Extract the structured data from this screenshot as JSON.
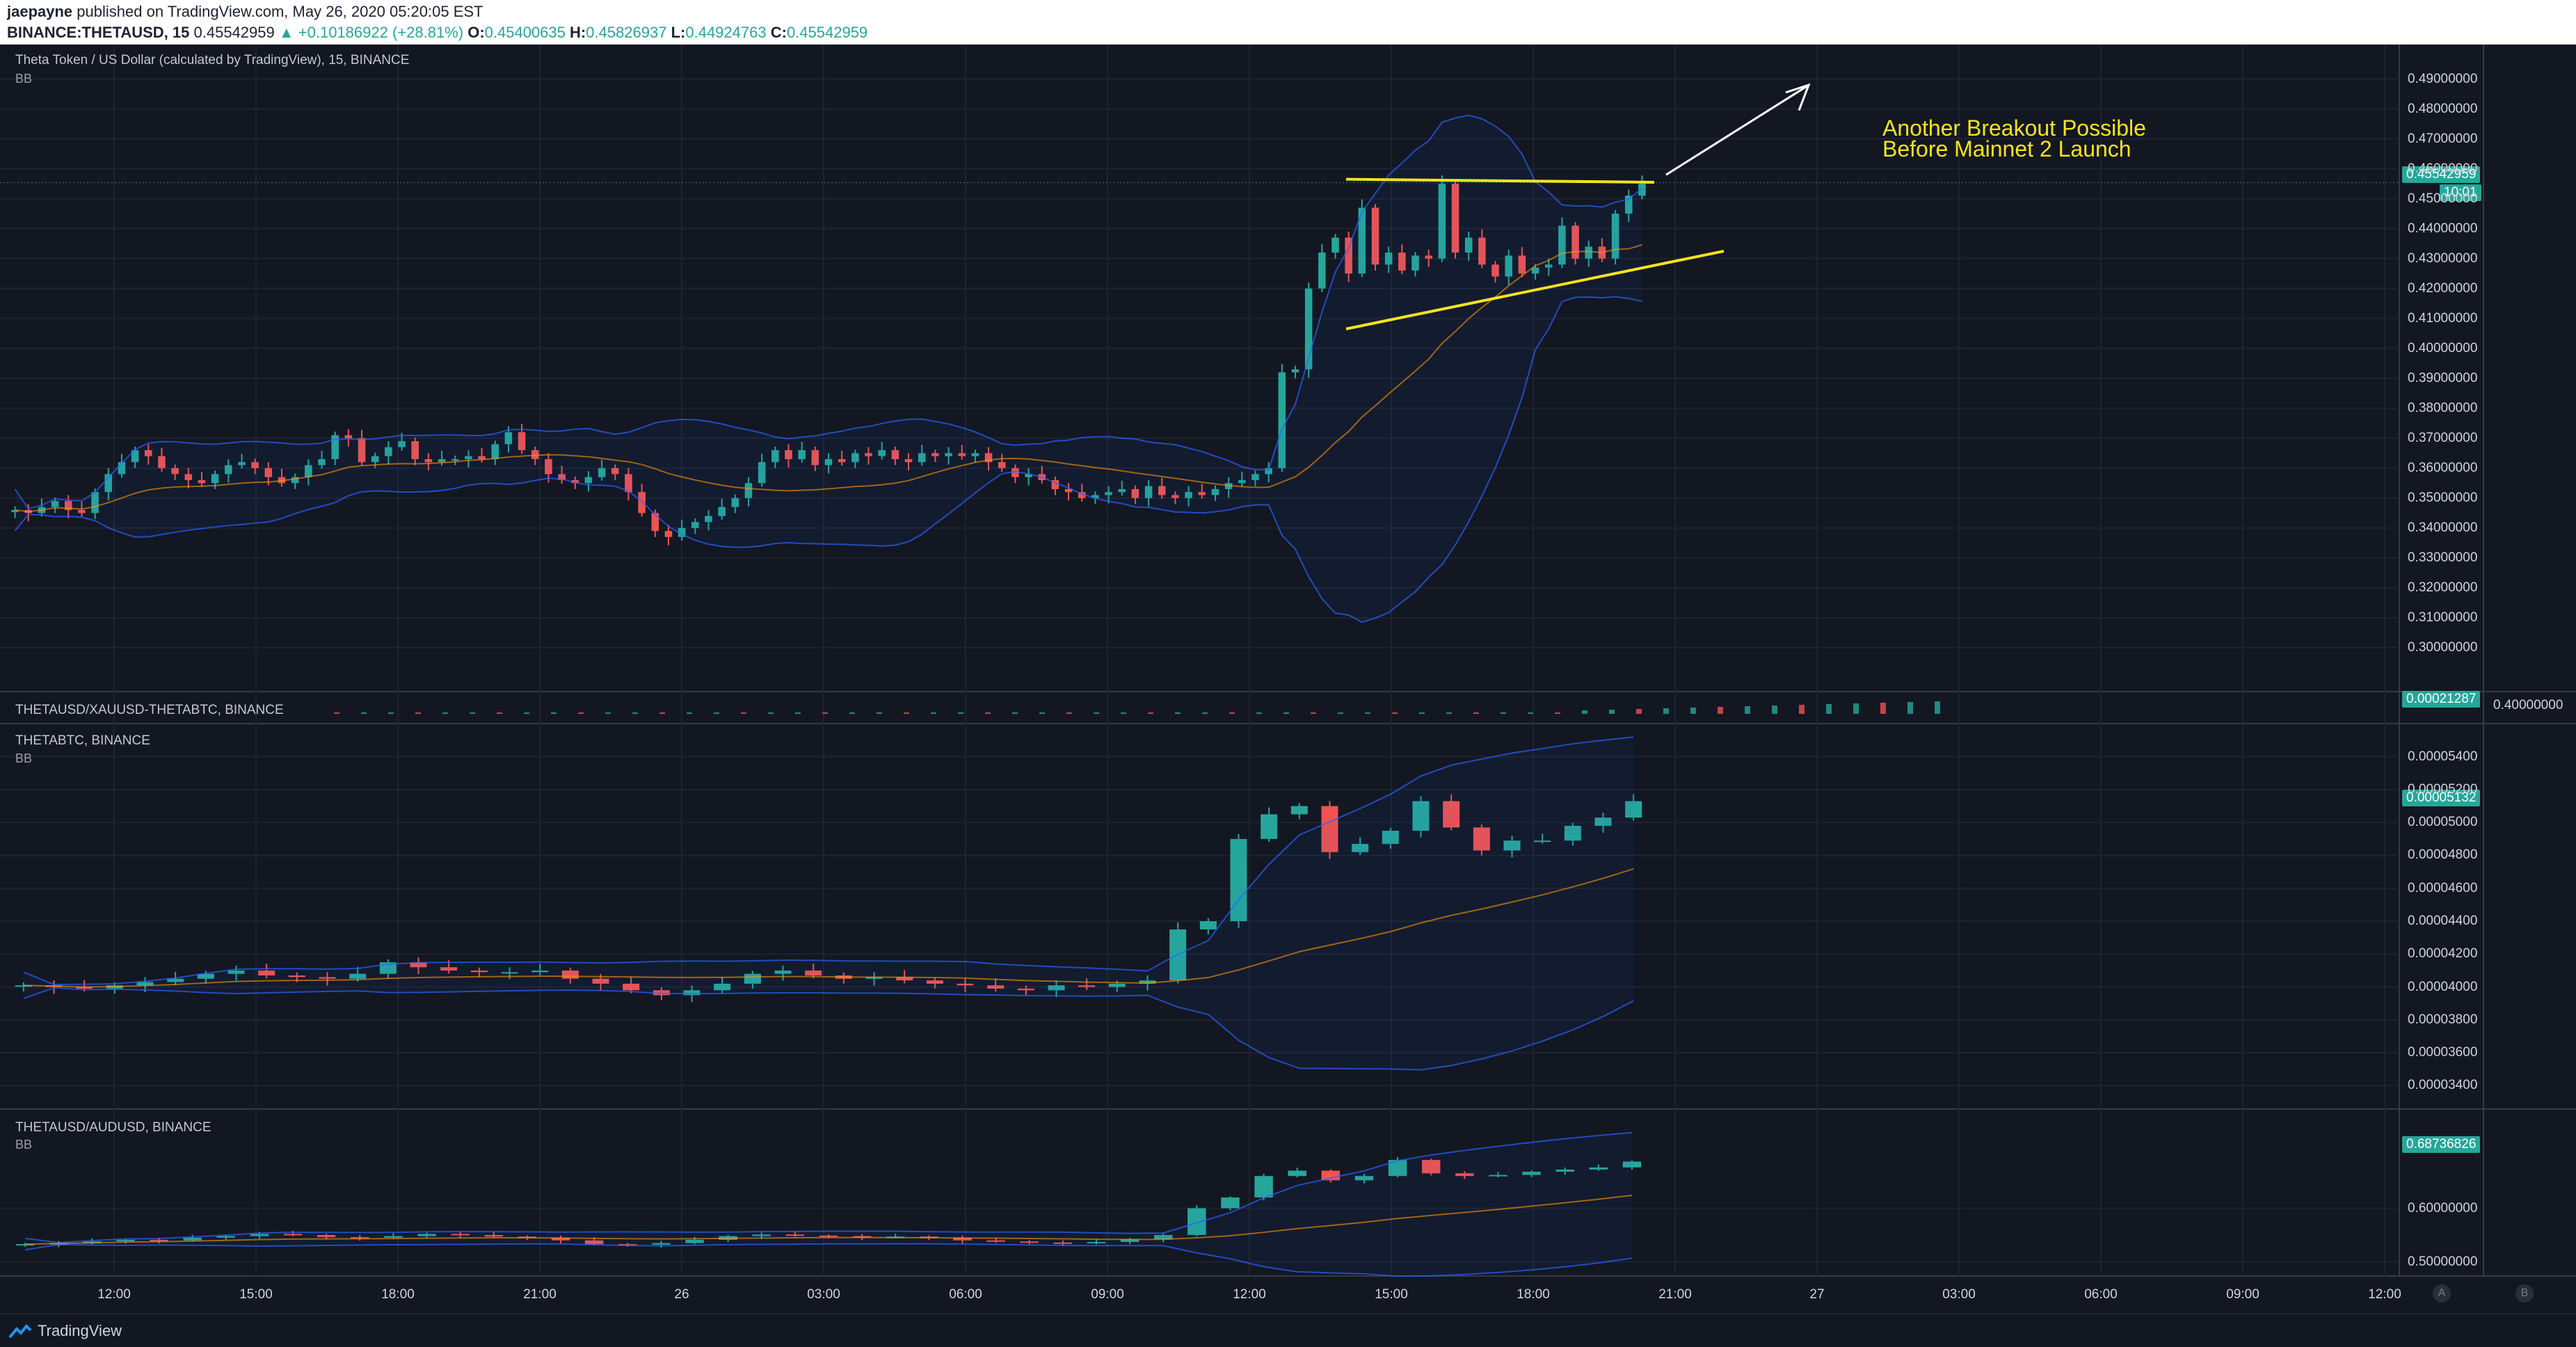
{
  "header": {
    "author": "jaepayne",
    "published": "published on TradingView.com, May 26, 2020 05:20:05 EST",
    "symbol": "BINANCE:THETAUSD, 15",
    "last": "0.45542959",
    "change": "▲ +0.10186922 (+28.81%)",
    "o_label": "O:",
    "o_value": "0.45400635",
    "h_label": "H:",
    "h_value": "0.45826937",
    "l_label": "L:",
    "l_value": "0.44924763",
    "c_label": "C:",
    "c_value": "0.45542959"
  },
  "panes": {
    "main": {
      "title": "Theta Token / US Dollar (calculated by TradingView), 15, BINANCE",
      "indicator": "BB",
      "ticks": [
        "0.49000000",
        "0.48000000",
        "0.47000000",
        "0.46000000",
        "0.45000000",
        "0.44000000",
        "0.43000000",
        "0.42000000",
        "0.41000000",
        "0.40000000",
        "0.39000000",
        "0.38000000",
        "0.37000000",
        "0.36000000",
        "0.35000000",
        "0.34000000",
        "0.33000000",
        "0.32000000",
        "0.31000000",
        "0.30000000"
      ],
      "last_price_badge": "0.45542959",
      "countdown_badge": "10:01",
      "annotation_line1": "Another Breakout Possible",
      "annotation_line2": "Before Mainnet 2 Launch"
    },
    "ratio": {
      "title": "THETAUSD/XAUUSD-THETABTC, BINANCE",
      "badge": "0.00021287",
      "side_value": "0.40000000"
    },
    "btc": {
      "title": "THETABTC, BINANCE",
      "indicator": "BB",
      "ticks": [
        "0.00005400",
        "0.00005200",
        "0.00005000",
        "0.00004800",
        "0.00004600",
        "0.00004400",
        "0.00004200",
        "0.00004000",
        "0.00003800",
        "0.00003600",
        "0.00003400"
      ],
      "badge": "0.00005132"
    },
    "aud": {
      "title": "THETAUSD/AUDUSD, BINANCE",
      "indicator": "BB",
      "ticks": [
        "0.60000000",
        "0.50000000"
      ],
      "badge": "0.68736826"
    }
  },
  "time_axis": [
    "12:00",
    "15:00",
    "18:00",
    "21:00",
    "26",
    "03:00",
    "06:00",
    "09:00",
    "12:00",
    "15:00",
    "18:00",
    "21:00",
    "27",
    "03:00",
    "06:00",
    "09:00",
    "12:00"
  ],
  "axis_buttons": [
    "A",
    "B"
  ],
  "footer": {
    "brand": "TradingView"
  },
  "colors": {
    "background": "#131722",
    "up": "#26a69a",
    "down": "#ef5350",
    "bb_band": "#2962ff",
    "bb_basis": "#ff9800",
    "annotation": "#f5e31d"
  },
  "chart_data": {
    "type": "candlestick",
    "main_price_axis": {
      "min": 0.29,
      "max": 0.495
    },
    "main_closes": [
      0.346,
      0.345,
      0.347,
      0.349,
      0.346,
      0.345,
      0.352,
      0.358,
      0.362,
      0.366,
      0.364,
      0.36,
      0.358,
      0.356,
      0.355,
      0.358,
      0.361,
      0.362,
      0.36,
      0.357,
      0.355,
      0.357,
      0.361,
      0.363,
      0.371,
      0.37,
      0.362,
      0.364,
      0.367,
      0.369,
      0.363,
      0.362,
      0.363,
      0.363,
      0.364,
      0.363,
      0.368,
      0.372,
      0.366,
      0.363,
      0.358,
      0.356,
      0.355,
      0.357,
      0.36,
      0.358,
      0.352,
      0.345,
      0.339,
      0.337,
      0.34,
      0.342,
      0.344,
      0.347,
      0.35,
      0.355,
      0.362,
      0.366,
      0.363,
      0.366,
      0.361,
      0.363,
      0.362,
      0.365,
      0.364,
      0.366,
      0.363,
      0.362,
      0.365,
      0.364,
      0.365,
      0.364,
      0.365,
      0.362,
      0.36,
      0.357,
      0.358,
      0.356,
      0.353,
      0.352,
      0.35,
      0.351,
      0.352,
      0.353,
      0.35,
      0.354,
      0.351,
      0.35,
      0.352,
      0.351,
      0.353,
      0.355,
      0.356,
      0.358,
      0.36,
      0.392,
      0.393,
      0.42,
      0.432,
      0.437,
      0.425,
      0.447,
      0.428,
      0.432,
      0.426,
      0.431,
      0.43,
      0.455,
      0.432,
      0.437,
      0.428,
      0.424,
      0.431,
      0.425,
      0.427,
      0.428,
      0.441,
      0.43,
      0.434,
      0.43,
      0.445,
      0.451,
      0.455
    ],
    "btc_closes": [
      4.01e-05,
      4e-05,
      3.99e-05,
      4.01e-05,
      4.03e-05,
      4.05e-05,
      4.08e-05,
      4.1e-05,
      4.07e-05,
      4.06e-05,
      4.05e-05,
      4.08e-05,
      4.15e-05,
      4.12e-05,
      4.1e-05,
      4.09e-05,
      4.09e-05,
      4.1e-05,
      4.05e-05,
      4.02e-05,
      3.98e-05,
      3.95e-05,
      3.98e-05,
      4.02e-05,
      4.08e-05,
      4.1e-05,
      4.07e-05,
      4.05e-05,
      4.06e-05,
      4.04e-05,
      4.02e-05,
      4.01e-05,
      3.99e-05,
      3.98e-05,
      4.01e-05,
      4e-05,
      4.02e-05,
      4.04e-05,
      4.35e-05,
      4.4e-05,
      4.9e-05,
      5.05e-05,
      5.1e-05,
      4.82e-05,
      4.87e-05,
      4.95e-05,
      5.13e-05,
      4.97e-05,
      4.83e-05,
      4.89e-05,
      4.89e-05,
      4.98e-05,
      5.03e-05,
      5.13e-05
    ],
    "aud_closes": [
      0.533,
      0.535,
      0.538,
      0.541,
      0.54,
      0.545,
      0.548,
      0.552,
      0.55,
      0.546,
      0.545,
      0.548,
      0.552,
      0.55,
      0.547,
      0.545,
      0.54,
      0.533,
      0.532,
      0.535,
      0.541,
      0.548,
      0.551,
      0.549,
      0.548,
      0.546,
      0.547,
      0.545,
      0.54,
      0.538,
      0.536,
      0.535,
      0.537,
      0.542,
      0.55,
      0.6,
      0.62,
      0.66,
      0.67,
      0.652,
      0.66,
      0.69,
      0.665,
      0.66,
      0.662,
      0.668,
      0.672,
      0.676,
      0.687
    ]
  }
}
